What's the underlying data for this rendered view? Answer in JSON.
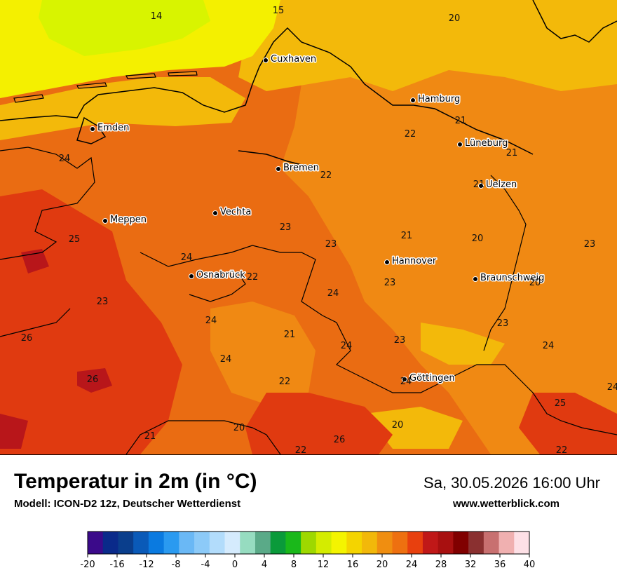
{
  "map": {
    "cities": [
      {
        "name": "Cuxhaven"
      },
      {
        "name": "Hamburg"
      },
      {
        "name": "Emden"
      },
      {
        "name": "Lüneburg"
      },
      {
        "name": "Bremen"
      },
      {
        "name": "Uelzen"
      },
      {
        "name": "Vechta"
      },
      {
        "name": "Meppen"
      },
      {
        "name": "Hannover"
      },
      {
        "name": "Osnabrück"
      },
      {
        "name": "Braunschweig"
      },
      {
        "name": "Göttingen"
      }
    ],
    "values": [
      "14",
      "15",
      "20",
      "21",
      "22",
      "21",
      "24",
      "22",
      "21",
      "25",
      "23",
      "23",
      "21",
      "20",
      "23",
      "24",
      "22",
      "23",
      "24",
      "23",
      "24",
      "21",
      "24",
      "23",
      "26",
      "24",
      "24",
      "23",
      "22",
      "26",
      "24",
      "20",
      "25",
      "21",
      "20",
      "26",
      "22",
      "20",
      "22",
      "24"
    ],
    "colors": {
      "sea_cool": "#d8f400",
      "sea_warm": "#f4f000",
      "land_20": "#f3b90a",
      "land_22": "#f08913",
      "land_24": "#ea6c12",
      "land_26": "#e03a10",
      "land_28": "#b8161a",
      "border": "#000000"
    }
  },
  "footer": {
    "title": "Temperatur in 2m (in °C)",
    "model": "Modell: ICON-D2 12z, Deutscher Wetterdienst",
    "datetime": "Sa, 30.05.2026 16:00 Uhr",
    "website": "www.wetterblick.com"
  },
  "legend": {
    "ticks": [
      "-20",
      "-16",
      "-12",
      "-8",
      "-4",
      "0",
      "4",
      "8",
      "12",
      "16",
      "20",
      "24",
      "28",
      "32",
      "36",
      "40"
    ],
    "colors": [
      "#3b0a8a",
      "#0a2a8a",
      "#0a3e8c",
      "#0a5ab8",
      "#0a7ae0",
      "#2a9af0",
      "#6ab8f5",
      "#8ccaf8",
      "#b2dcfb",
      "#d5ebfd",
      "#96dcc0",
      "#5aaa88",
      "#0a9a3a",
      "#1ab81a",
      "#9ed800",
      "#d4ec00",
      "#f4f400",
      "#f4d400",
      "#f2b80a",
      "#f08e10",
      "#ee7010",
      "#e8400e",
      "#c01818",
      "#a81010",
      "#800000",
      "#8a3030",
      "#c87070",
      "#f0b0b0",
      "#fde0e6"
    ]
  }
}
